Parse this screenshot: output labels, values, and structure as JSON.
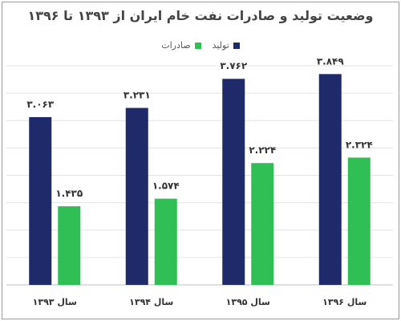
{
  "chart_data": {
    "type": "bar",
    "title": "وضعیت تولید و صادرات نفت خام ایران از ۱۳۹۳ تا ۱۳۹۶",
    "categories": [
      "سال ۱۳۹۳",
      "سال ۱۳۹۴",
      "سال ۱۳۹۵",
      "سال ۱۳۹۶"
    ],
    "series": [
      {
        "name": "تولید",
        "color": "#1f2a6b",
        "values": [
          3.063,
          3.231,
          3.762,
          3.849
        ],
        "labels": [
          "۳.۰۶۳",
          "۳.۲۳۱",
          "۳.۷۶۲",
          "۳.۸۴۹"
        ]
      },
      {
        "name": "صادرات",
        "color": "#2fbf54",
        "values": [
          1.435,
          1.574,
          2.224,
          2.324
        ],
        "labels": [
          "۱.۴۳۵",
          "۱.۵۷۴",
          "۲.۲۲۴",
          "۲.۳۲۴"
        ]
      }
    ],
    "ylim": [
      0,
      4.0
    ],
    "grid": true,
    "legend_position": "top"
  }
}
